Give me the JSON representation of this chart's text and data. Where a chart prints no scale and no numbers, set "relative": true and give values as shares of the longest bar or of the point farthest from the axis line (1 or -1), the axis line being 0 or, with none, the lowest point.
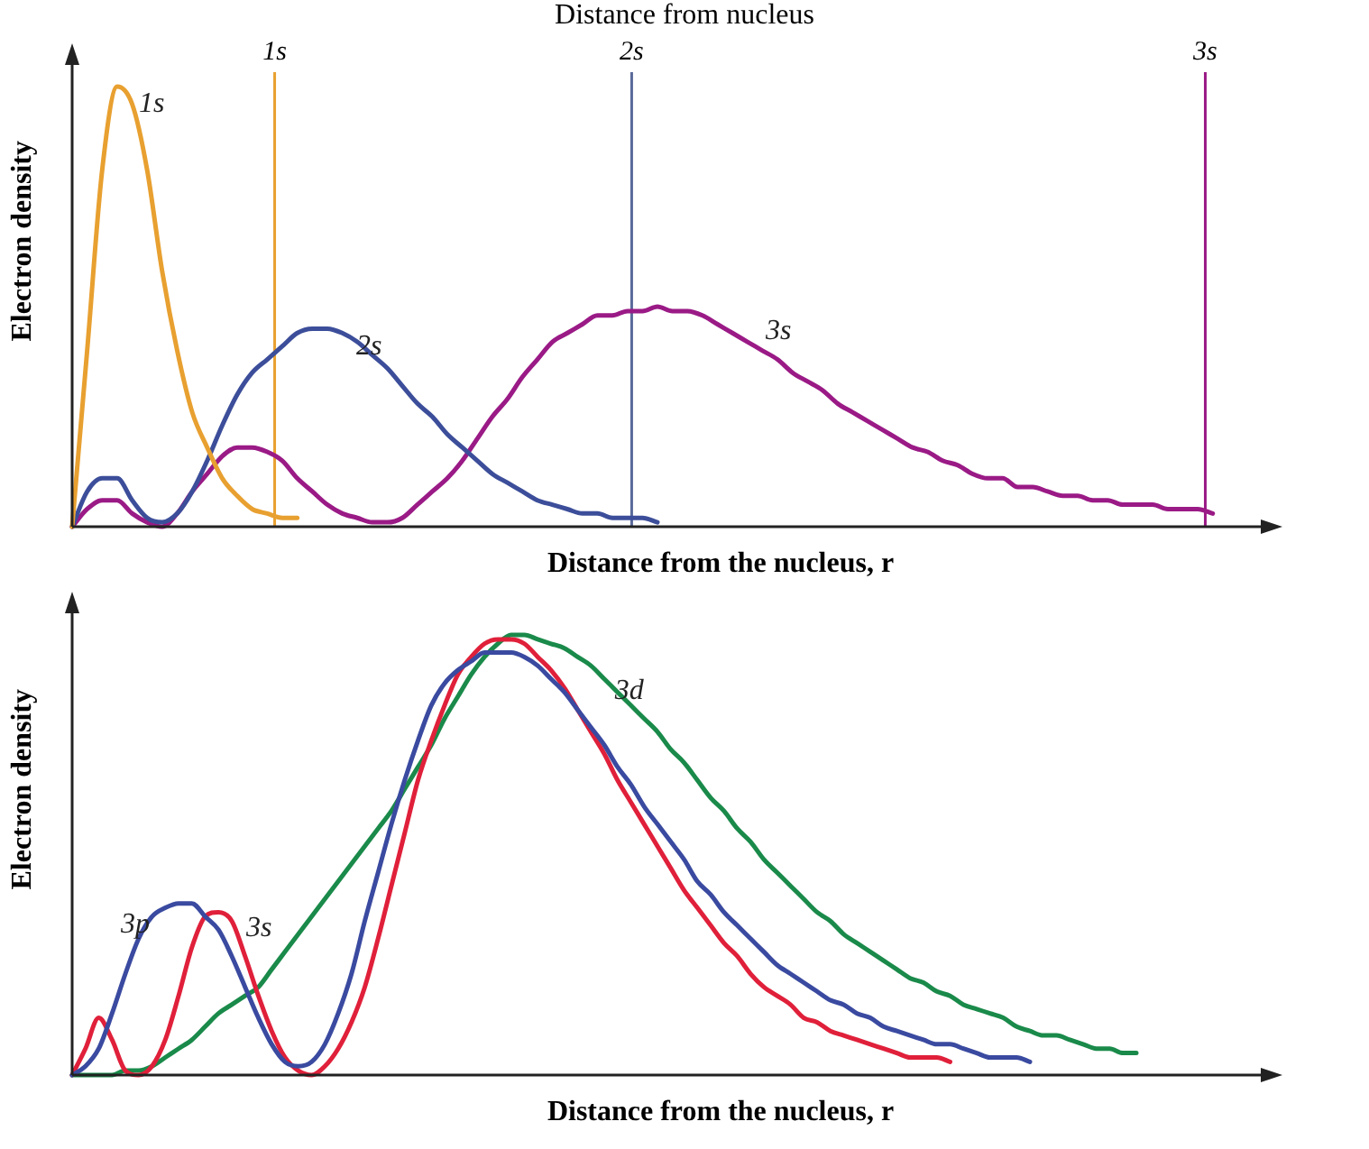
{
  "chart_data": [
    {
      "type": "line",
      "title": "Distance from nucleus",
      "xlabel": "Distance from the nucleus, r",
      "ylabel": "Electron density",
      "relative": true,
      "legend": false,
      "grid": false,
      "tick_labels": false,
      "categories": [
        null,
        null,
        null,
        null,
        null,
        null,
        null,
        null,
        null,
        null,
        null,
        null,
        null,
        null,
        null,
        null,
        null,
        null,
        null,
        null,
        null,
        null,
        null,
        null,
        null,
        null,
        null,
        null,
        null,
        null,
        null,
        null,
        null,
        null,
        null,
        null,
        null,
        null,
        null,
        null,
        null,
        null,
        null,
        null,
        null,
        null,
        null,
        null,
        null,
        null,
        null,
        null,
        null,
        null,
        null,
        null,
        null,
        null,
        null,
        null,
        null,
        null,
        null,
        null,
        null,
        null,
        null,
        null,
        null,
        null,
        null,
        null,
        null,
        null,
        null,
        null,
        null,
        null,
        null
      ],
      "series": [
        {
          "name": "1s",
          "color": "#e8a030",
          "values": [
            0,
            0.4,
            0.81,
            1.0,
            0.96,
            0.81,
            0.58,
            0.4,
            0.26,
            0.18,
            0.11,
            0.07,
            0.04,
            0.03,
            0.02,
            0.02,
            null,
            null,
            null,
            null,
            null,
            null,
            null,
            null,
            null,
            null,
            null,
            null,
            null,
            null,
            null,
            null,
            null,
            null,
            null,
            null,
            null,
            null,
            null,
            null,
            null,
            null,
            null,
            null,
            null,
            null,
            null,
            null,
            null,
            null,
            null,
            null,
            null,
            null,
            null,
            null,
            null,
            null,
            null,
            null,
            null,
            null,
            null,
            null,
            null,
            null,
            null,
            null,
            null,
            null,
            null,
            null,
            null,
            null,
            null,
            null,
            null,
            null,
            null
          ]
        },
        {
          "name": "2s",
          "color": "#3c4e9a",
          "values": [
            0,
            0.08,
            0.11,
            0.11,
            0.06,
            0.02,
            0.01,
            0.03,
            0.08,
            0.15,
            0.23,
            0.3,
            0.35,
            0.38,
            0.41,
            0.44,
            0.45,
            0.45,
            0.44,
            0.42,
            0.39,
            0.36,
            0.32,
            0.28,
            0.25,
            0.21,
            0.18,
            0.15,
            0.12,
            0.1,
            0.08,
            0.06,
            0.05,
            0.04,
            0.03,
            0.03,
            0.02,
            0.02,
            0.02,
            0.01,
            null,
            null,
            null,
            null,
            null,
            null,
            null,
            null,
            null,
            null,
            null,
            null,
            null,
            null,
            null,
            null,
            null,
            null,
            null,
            null,
            null,
            null,
            null,
            null,
            null,
            null,
            null,
            null,
            null,
            null,
            null,
            null,
            null,
            null,
            null,
            null,
            null,
            null,
            null
          ]
        },
        {
          "name": "3s",
          "color": "#9a1a86",
          "values": [
            0,
            0.04,
            0.06,
            0.06,
            0.03,
            0.01,
            0,
            0.03,
            0.08,
            0.12,
            0.16,
            0.18,
            0.18,
            0.17,
            0.15,
            0.11,
            0.08,
            0.05,
            0.03,
            0.02,
            0.01,
            0.01,
            0.02,
            0.05,
            0.08,
            0.11,
            0.15,
            0.2,
            0.25,
            0.29,
            0.34,
            0.38,
            0.42,
            0.44,
            0.46,
            0.48,
            0.48,
            0.49,
            0.49,
            0.5,
            0.49,
            0.49,
            0.48,
            0.46,
            0.44,
            0.42,
            0.4,
            0.38,
            0.35,
            0.33,
            0.31,
            0.28,
            0.26,
            0.24,
            0.22,
            0.2,
            0.18,
            0.17,
            0.15,
            0.14,
            0.12,
            0.11,
            0.11,
            0.09,
            0.09,
            0.08,
            0.07,
            0.07,
            0.06,
            0.06,
            0.05,
            0.05,
            0.05,
            0.04,
            0.04,
            0.04,
            0.03,
            null,
            null
          ]
        }
      ],
      "annotations": [
        "1s",
        "2s",
        "3s"
      ]
    },
    {
      "type": "line",
      "xlabel": "Distance from the nucleus, r",
      "ylabel": "Electron density",
      "relative": true,
      "legend": false,
      "grid": false,
      "tick_labels": false,
      "categories": [
        null,
        null,
        null,
        null,
        null,
        null,
        null,
        null,
        null,
        null,
        null,
        null,
        null,
        null,
        null,
        null,
        null,
        null,
        null,
        null,
        null,
        null,
        null,
        null,
        null,
        null,
        null,
        null,
        null,
        null,
        null,
        null,
        null,
        null,
        null,
        null,
        null,
        null,
        null,
        null,
        null,
        null,
        null,
        null,
        null,
        null,
        null,
        null,
        null,
        null,
        null,
        null,
        null,
        null,
        null,
        null,
        null,
        null,
        null,
        null,
        null,
        null,
        null,
        null,
        null,
        null,
        null,
        null,
        null,
        null,
        null,
        null,
        null,
        null,
        null,
        null,
        null,
        null,
        null,
        null,
        null,
        null,
        null,
        null,
        null,
        null,
        null,
        null,
        null
      ],
      "series": [
        {
          "name": "3p",
          "color": "#3a4aa0",
          "values": [
            0,
            0.02,
            0.06,
            0.14,
            0.23,
            0.31,
            0.36,
            0.38,
            0.39,
            0.39,
            0.36,
            0.33,
            0.27,
            0.2,
            0.13,
            0.07,
            0.03,
            0.02,
            0.03,
            0.07,
            0.14,
            0.23,
            0.35,
            0.46,
            0.57,
            0.67,
            0.76,
            0.84,
            0.89,
            0.92,
            0.94,
            0.96,
            0.96,
            0.96,
            0.95,
            0.93,
            0.9,
            0.87,
            0.83,
            0.79,
            0.75,
            0.7,
            0.66,
            0.61,
            0.57,
            0.53,
            0.49,
            0.44,
            0.41,
            0.37,
            0.34,
            0.31,
            0.28,
            0.25,
            0.23,
            0.21,
            0.19,
            0.17,
            0.16,
            0.14,
            0.13,
            0.11,
            0.1,
            0.09,
            0.08,
            0.07,
            0.07,
            0.06,
            0.05,
            0.04,
            0.04,
            0.04,
            0.03,
            null,
            null,
            null,
            null,
            null,
            null,
            null,
            null,
            null,
            null,
            null,
            null,
            null,
            null,
            null,
            null
          ]
        },
        {
          "name": "3s",
          "color": "#e0203a",
          "values": [
            0,
            0.06,
            0.13,
            0.08,
            0.01,
            0,
            0.02,
            0.08,
            0.18,
            0.29,
            0.36,
            0.37,
            0.35,
            0.27,
            0.18,
            0.1,
            0.04,
            0.01,
            0,
            0.02,
            0.06,
            0.12,
            0.2,
            0.31,
            0.43,
            0.55,
            0.67,
            0.76,
            0.84,
            0.91,
            0.95,
            0.98,
            0.99,
            0.99,
            0.98,
            0.95,
            0.92,
            0.88,
            0.83,
            0.78,
            0.73,
            0.67,
            0.62,
            0.57,
            0.52,
            0.47,
            0.42,
            0.38,
            0.34,
            0.3,
            0.27,
            0.23,
            0.2,
            0.18,
            0.16,
            0.13,
            0.12,
            0.1,
            0.09,
            0.08,
            0.07,
            0.06,
            0.05,
            0.04,
            0.04,
            0.04,
            0.03,
            null,
            null,
            null,
            null,
            null,
            null,
            null,
            null,
            null,
            null,
            null,
            null,
            null,
            null,
            null,
            null,
            null,
            null,
            null,
            null,
            null,
            null
          ]
        },
        {
          "name": "3d",
          "color": "#1a8a4a",
          "values": [
            0,
            0,
            0,
            0,
            0.01,
            0.01,
            0.02,
            0.04,
            0.06,
            0.08,
            0.11,
            0.14,
            0.16,
            0.18,
            0.2,
            0.24,
            0.28,
            0.32,
            0.36,
            0.4,
            0.44,
            0.48,
            0.52,
            0.56,
            0.6,
            0.65,
            0.7,
            0.75,
            0.81,
            0.86,
            0.91,
            0.95,
            0.98,
            1.0,
            1.0,
            0.99,
            0.98,
            0.97,
            0.95,
            0.93,
            0.9,
            0.87,
            0.84,
            0.81,
            0.78,
            0.74,
            0.71,
            0.67,
            0.63,
            0.6,
            0.56,
            0.53,
            0.49,
            0.46,
            0.43,
            0.4,
            0.37,
            0.35,
            0.32,
            0.3,
            0.28,
            0.26,
            0.24,
            0.22,
            0.21,
            0.19,
            0.18,
            0.16,
            0.15,
            0.14,
            0.13,
            0.11,
            0.1,
            0.09,
            0.09,
            0.08,
            0.07,
            0.06,
            0.06,
            0.05,
            0.05,
            null,
            null,
            null,
            null,
            null,
            null,
            null,
            null
          ]
        }
      ]
    }
  ]
}
